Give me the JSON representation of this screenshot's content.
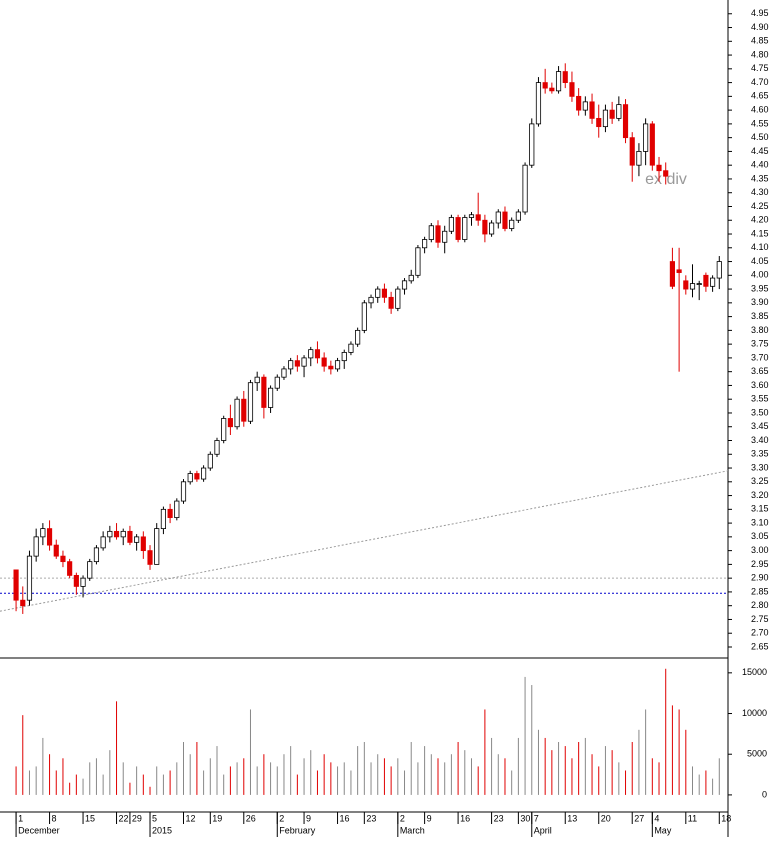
{
  "chart_data": {
    "type": "candlestick",
    "annotation": "ex div",
    "candles": [
      [
        2.93,
        2.93,
        2.78,
        2.82
      ],
      [
        2.82,
        2.87,
        2.77,
        2.8
      ],
      [
        2.82,
        3.0,
        2.8,
        2.98
      ],
      [
        2.98,
        3.08,
        2.96,
        3.05
      ],
      [
        3.05,
        3.1,
        3.02,
        3.08
      ],
      [
        3.08,
        3.11,
        3.0,
        3.02
      ],
      [
        3.02,
        3.04,
        2.97,
        2.98
      ],
      [
        2.98,
        3.0,
        2.94,
        2.96
      ],
      [
        2.96,
        2.97,
        2.9,
        2.91
      ],
      [
        2.91,
        2.92,
        2.84,
        2.87
      ],
      [
        2.87,
        2.91,
        2.83,
        2.9
      ],
      [
        2.9,
        2.97,
        2.89,
        2.96
      ],
      [
        2.96,
        3.02,
        2.95,
        3.01
      ],
      [
        3.01,
        3.07,
        3.0,
        3.05
      ],
      [
        3.05,
        3.09,
        3.03,
        3.07
      ],
      [
        3.07,
        3.1,
        3.04,
        3.05
      ],
      [
        3.05,
        3.08,
        3.02,
        3.07
      ],
      [
        3.07,
        3.09,
        3.02,
        3.03
      ],
      [
        3.03,
        3.06,
        3.0,
        3.05
      ],
      [
        3.05,
        3.07,
        2.97,
        3.0
      ],
      [
        3.0,
        3.02,
        2.93,
        2.95
      ],
      [
        2.95,
        3.1,
        2.95,
        3.08
      ],
      [
        3.08,
        3.16,
        3.06,
        3.15
      ],
      [
        3.15,
        3.17,
        3.1,
        3.12
      ],
      [
        3.12,
        3.19,
        3.11,
        3.18
      ],
      [
        3.18,
        3.26,
        3.17,
        3.25
      ],
      [
        3.25,
        3.29,
        3.24,
        3.28
      ],
      [
        3.28,
        3.29,
        3.25,
        3.26
      ],
      [
        3.26,
        3.31,
        3.25,
        3.3
      ],
      [
        3.3,
        3.36,
        3.29,
        3.35
      ],
      [
        3.35,
        3.41,
        3.34,
        3.4
      ],
      [
        3.4,
        3.49,
        3.39,
        3.48
      ],
      [
        3.48,
        3.53,
        3.42,
        3.45
      ],
      [
        3.45,
        3.56,
        3.44,
        3.55
      ],
      [
        3.55,
        3.58,
        3.45,
        3.47
      ],
      [
        3.47,
        3.62,
        3.46,
        3.61
      ],
      [
        3.61,
        3.65,
        3.58,
        3.63
      ],
      [
        3.63,
        3.64,
        3.48,
        3.52
      ],
      [
        3.52,
        3.6,
        3.5,
        3.59
      ],
      [
        3.59,
        3.64,
        3.58,
        3.63
      ],
      [
        3.63,
        3.67,
        3.62,
        3.66
      ],
      [
        3.66,
        3.7,
        3.64,
        3.69
      ],
      [
        3.69,
        3.71,
        3.65,
        3.67
      ],
      [
        3.67,
        3.71,
        3.63,
        3.7
      ],
      [
        3.7,
        3.74,
        3.67,
        3.73
      ],
      [
        3.73,
        3.76,
        3.68,
        3.7
      ],
      [
        3.7,
        3.72,
        3.65,
        3.67
      ],
      [
        3.67,
        3.69,
        3.64,
        3.66
      ],
      [
        3.66,
        3.7,
        3.65,
        3.69
      ],
      [
        3.69,
        3.73,
        3.66,
        3.72
      ],
      [
        3.72,
        3.76,
        3.71,
        3.75
      ],
      [
        3.75,
        3.81,
        3.74,
        3.8
      ],
      [
        3.8,
        3.91,
        3.79,
        3.9
      ],
      [
        3.9,
        3.93,
        3.88,
        3.92
      ],
      [
        3.92,
        3.96,
        3.9,
        3.95
      ],
      [
        3.95,
        3.97,
        3.9,
        3.92
      ],
      [
        3.92,
        3.94,
        3.86,
        3.88
      ],
      [
        3.88,
        3.96,
        3.87,
        3.95
      ],
      [
        3.95,
        3.99,
        3.93,
        3.98
      ],
      [
        3.98,
        4.02,
        3.97,
        4.0
      ],
      [
        4.0,
        4.11,
        3.99,
        4.1
      ],
      [
        4.1,
        4.14,
        4.08,
        4.13
      ],
      [
        4.13,
        4.19,
        4.12,
        4.18
      ],
      [
        4.18,
        4.2,
        4.1,
        4.12
      ],
      [
        4.12,
        4.18,
        4.08,
        4.16
      ],
      [
        4.16,
        4.22,
        4.15,
        4.21
      ],
      [
        4.21,
        4.22,
        4.12,
        4.13
      ],
      [
        4.13,
        4.22,
        4.12,
        4.21
      ],
      [
        4.21,
        4.23,
        4.18,
        4.22
      ],
      [
        4.22,
        4.3,
        4.18,
        4.2
      ],
      [
        4.2,
        4.22,
        4.12,
        4.15
      ],
      [
        4.15,
        4.2,
        4.14,
        4.19
      ],
      [
        4.19,
        4.24,
        4.17,
        4.23
      ],
      [
        4.23,
        4.25,
        4.16,
        4.17
      ],
      [
        4.17,
        4.21,
        4.16,
        4.2
      ],
      [
        4.2,
        4.24,
        4.19,
        4.23
      ],
      [
        4.23,
        4.41,
        4.22,
        4.4
      ],
      [
        4.4,
        4.57,
        4.39,
        4.55
      ],
      [
        4.55,
        4.72,
        4.54,
        4.7
      ],
      [
        4.7,
        4.75,
        4.66,
        4.68
      ],
      [
        4.68,
        4.7,
        4.66,
        4.67
      ],
      [
        4.67,
        4.76,
        4.66,
        4.74
      ],
      [
        4.74,
        4.77,
        4.68,
        4.7
      ],
      [
        4.7,
        4.74,
        4.63,
        4.65
      ],
      [
        4.65,
        4.68,
        4.58,
        4.6
      ],
      [
        4.6,
        4.65,
        4.58,
        4.63
      ],
      [
        4.63,
        4.66,
        4.55,
        4.57
      ],
      [
        4.57,
        4.62,
        4.5,
        4.54
      ],
      [
        4.54,
        4.62,
        4.52,
        4.6
      ],
      [
        4.6,
        4.63,
        4.55,
        4.57
      ],
      [
        4.57,
        4.65,
        4.56,
        4.62
      ],
      [
        4.62,
        4.64,
        4.48,
        4.5
      ],
      [
        4.5,
        4.52,
        4.34,
        4.4
      ],
      [
        4.4,
        4.48,
        4.36,
        4.45
      ],
      [
        4.45,
        4.57,
        4.4,
        4.55
      ],
      [
        4.55,
        4.56,
        4.38,
        4.4
      ],
      [
        4.4,
        4.43,
        4.34,
        4.38
      ],
      [
        4.38,
        4.41,
        4.33,
        4.36
      ],
      [
        4.05,
        4.1,
        3.95,
        3.96
      ],
      [
        4.02,
        4.1,
        3.65,
        4.01
      ],
      [
        3.98,
        4.0,
        3.93,
        3.95
      ],
      [
        3.95,
        4.04,
        3.92,
        3.97
      ],
      [
        3.97,
        3.98,
        3.91,
        3.97
      ],
      [
        4.0,
        4.01,
        3.94,
        3.96
      ],
      [
        3.96,
        4.0,
        3.94,
        3.99
      ],
      [
        3.99,
        4.07,
        3.95,
        4.05
      ]
    ],
    "up_color": "#ffffff",
    "down_color": "#e00000",
    "volume": [
      3500,
      9800,
      3000,
      3500,
      7000,
      5000,
      3000,
      4500,
      1500,
      2500,
      2000,
      4000,
      4500,
      2500,
      5500,
      11500,
      4000,
      1500,
      3500,
      2500,
      1000,
      3500,
      2500,
      3000,
      4000,
      6500,
      5000,
      6500,
      3000,
      4500,
      6000,
      2500,
      3500,
      4000,
      4500,
      10500,
      3500,
      5000,
      4000,
      3500,
      5000,
      6000,
      2500,
      4500,
      5500,
      3000,
      5000,
      4000,
      3500,
      4000,
      3000,
      6000,
      6500,
      4000,
      5000,
      4500,
      3500,
      4500,
      3000,
      6500,
      4000,
      6000,
      5000,
      4500,
      4000,
      5000,
      6500,
      5500,
      4500,
      3500,
      10500,
      7000,
      5000,
      4500,
      3000,
      7000,
      14500,
      13500,
      8000,
      7000,
      5500,
      6500,
      6000,
      4500,
      6500,
      7000,
      5000,
      3500,
      6000,
      5500,
      4000,
      3000,
      6500,
      8000,
      10500,
      4500,
      4000,
      15500,
      11000,
      10500,
      8000,
      3500,
      2500,
      3000,
      2000,
      4500
    ],
    "xlim": [
      -2.4,
      106.3
    ],
    "ylim": [
      2.61,
      5.0
    ],
    "yticks": [
      2.65,
      {
        "value": 2.7,
        "label": "2.70"
      },
      2.75,
      {
        "value": 2.8,
        "label": "2.80"
      },
      2.85,
      {
        "value": 2.9,
        "label": "2.90"
      },
      2.95,
      {
        "value": 3.0,
        "label": "3.00"
      },
      3.05,
      {
        "value": 3.1,
        "label": "3.10"
      },
      3.15,
      {
        "value": 3.2,
        "label": "3.20"
      },
      3.25,
      {
        "value": 3.3,
        "label": "3.30"
      },
      3.35,
      {
        "value": 3.4,
        "label": "3.40"
      },
      3.45,
      {
        "value": 3.5,
        "label": "3.50"
      },
      3.55,
      {
        "value": 3.6,
        "label": "3.60"
      },
      3.65,
      {
        "value": 3.7,
        "label": "3.70"
      },
      3.75,
      {
        "value": 3.8,
        "label": "3.80"
      },
      3.85,
      {
        "value": 3.9,
        "label": "3.90"
      },
      3.95,
      {
        "value": 4.0,
        "label": "4.00"
      },
      4.05,
      {
        "value": 4.1,
        "label": "4.10"
      },
      4.15,
      {
        "value": 4.2,
        "label": "4.20"
      },
      4.25,
      {
        "value": 4.3,
        "label": "4.30"
      },
      4.35,
      {
        "value": 4.4,
        "label": "4.40"
      },
      4.45,
      {
        "value": 4.5,
        "label": "4.50"
      },
      4.55,
      {
        "value": 4.6,
        "label": "4.60"
      },
      4.65,
      {
        "value": 4.7,
        "label": "4.70"
      },
      4.75,
      {
        "value": 4.8,
        "label": "4.80"
      },
      4.85,
      {
        "value": 4.9,
        "label": "4.90"
      },
      4.95
    ],
    "volume_ylim": [
      -2100,
      16700
    ],
    "volume_yticks": [
      0,
      5000,
      10000,
      15000
    ],
    "xticks": [
      {
        "value": 0,
        "label": "1"
      },
      {
        "value": 5,
        "label": "8"
      },
      {
        "value": 10,
        "label": "15"
      },
      {
        "value": 15,
        "label": "22"
      },
      {
        "value": 17,
        "label": "29"
      },
      {
        "value": 20,
        "label": "5"
      },
      {
        "value": 25,
        "label": "12"
      },
      {
        "value": 29,
        "label": "19"
      },
      {
        "value": 34,
        "label": "26"
      },
      {
        "value": 39,
        "label": "2"
      },
      {
        "value": 43,
        "label": "9"
      },
      {
        "value": 48,
        "label": "16"
      },
      {
        "value": 52,
        "label": "23"
      },
      {
        "value": 57,
        "label": "2"
      },
      {
        "value": 61,
        "label": "9"
      },
      {
        "value": 66,
        "label": "16"
      },
      {
        "value": 71,
        "label": "23"
      },
      {
        "value": 75,
        "label": "30"
      },
      {
        "value": 77,
        "label": "7"
      },
      {
        "value": 82,
        "label": "13"
      },
      {
        "value": 87,
        "label": "20"
      },
      {
        "value": 92,
        "label": "27"
      },
      {
        "value": 95,
        "label": "4"
      },
      {
        "value": 100,
        "label": "11"
      },
      {
        "value": 105,
        "label": "18"
      }
    ],
    "month_ticks": [
      {
        "value": 0,
        "label": "December"
      },
      {
        "value": 20,
        "label": "2015"
      },
      {
        "value": 39,
        "label": "February"
      },
      {
        "value": 57,
        "label": "March"
      },
      {
        "value": 77,
        "label": "April"
      },
      {
        "value": 95,
        "label": "May"
      }
    ],
    "reference_lines": [
      {
        "value": 2.845,
        "color": "#0000cc"
      },
      {
        "value": 2.9,
        "color": "#aaaaaa"
      }
    ],
    "trendline": {
      "x": [
        -2.4,
        106.3
      ],
      "y": [
        2.78,
        3.29
      ],
      "color": "#999999"
    }
  }
}
